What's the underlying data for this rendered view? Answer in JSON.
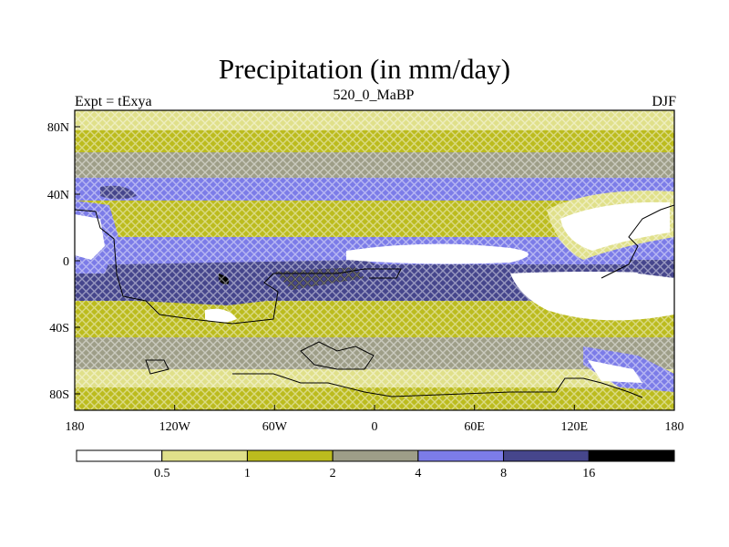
{
  "title": "Precipitation (in mm/day)",
  "left_string": "Expt = tExya",
  "center_string": "520_0_MaBP",
  "right_string": "DJF",
  "lon_ticks": [
    "180",
    "120W",
    "60W",
    "0",
    "60E",
    "120E",
    "180"
  ],
  "lat_ticks": [
    "80N",
    "40N",
    "0",
    "40S",
    "80S"
  ],
  "colorbar": {
    "labels": [
      "0.5",
      "1",
      "2",
      "4",
      "8",
      "16"
    ],
    "colors": [
      "#ffffff",
      "#e0e08a",
      "#bcbc1e",
      "#9e9e88",
      "#7c7ce8",
      "#46468c",
      "#000000"
    ]
  },
  "chart_data": {
    "type": "heatmap",
    "title": "Precipitation (in mm/day)",
    "season": "DJF",
    "experiment": "tExya",
    "period": "520_0_MaBP",
    "xlim": [
      -180,
      180
    ],
    "ylim": [
      -90,
      90
    ],
    "levels": [
      0.5,
      1,
      2,
      4,
      8,
      16
    ]
  }
}
